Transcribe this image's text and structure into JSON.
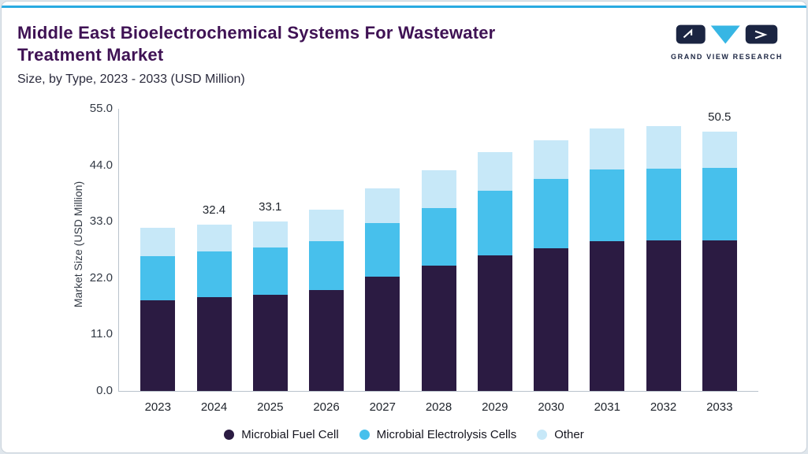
{
  "header": {
    "title": "Middle East Bioelectrochemical Systems For Wastewater Treatment Market",
    "subtitle": "Size, by Type, 2023 - 2033 (USD Million)",
    "logo_text": "GRAND VIEW RESEARCH"
  },
  "colors": {
    "accent_line": "#29aae1",
    "title_text": "#3f1254",
    "logo_dark": "#1b2542",
    "logo_cyan": "#37b6e4"
  },
  "chart_data": {
    "type": "bar",
    "stacked": true,
    "title": "Middle East Bioelectrochemical Systems For Wastewater Treatment Market",
    "subtitle": "Size, by Type, 2023 - 2033 (USD Million)",
    "ylabel": "Market Size (USD Million)",
    "ylim": [
      0,
      55
    ],
    "yticks": [
      "0.0",
      "11.0",
      "22.0",
      "33.0",
      "44.0",
      "55.0"
    ],
    "grid": false,
    "legend_position": "bottom",
    "categories": [
      "2023",
      "2024",
      "2025",
      "2026",
      "2027",
      "2028",
      "2029",
      "2030",
      "2031",
      "2032",
      "2033"
    ],
    "series": [
      {
        "name": "Microbial Fuel Cell",
        "color": "#2b1b42",
        "values": [
          17.7,
          18.3,
          18.8,
          19.7,
          22.3,
          24.5,
          26.5,
          27.8,
          29.2,
          29.4,
          29.3
        ]
      },
      {
        "name": "Microbial Electrolysis Cells",
        "color": "#47c0ec",
        "values": [
          8.6,
          8.9,
          9.2,
          9.5,
          10.4,
          11.2,
          12.6,
          13.5,
          13.9,
          14.0,
          14.2
        ]
      },
      {
        "name": "Other",
        "color": "#c7e8f8",
        "values": [
          5.5,
          5.2,
          5.1,
          6.2,
          6.8,
          7.3,
          7.4,
          7.5,
          8.1,
          8.3,
          7.0
        ]
      }
    ],
    "totals_labeled": {
      "2024": "32.4",
      "2025": "33.1",
      "2033": "50.5"
    }
  }
}
